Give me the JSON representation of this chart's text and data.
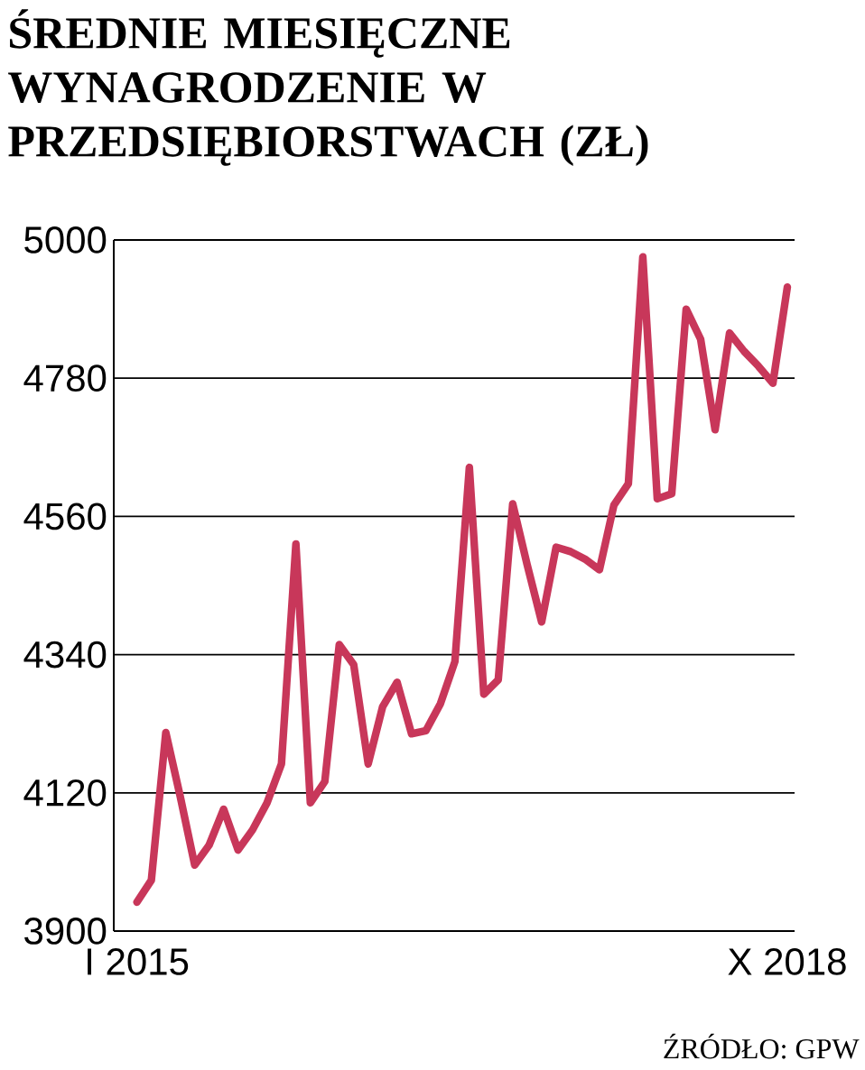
{
  "chart_data": {
    "type": "line",
    "title": "ŚREDNIE MIESIĘCZNE WYNAGRODZENIE W PRZEDSIĘBIORSTWACH (ZŁ)",
    "categories": [
      "I 2015",
      null,
      null,
      null,
      null,
      null,
      null,
      null,
      null,
      null,
      null,
      null,
      null,
      null,
      null,
      null,
      null,
      null,
      null,
      null,
      null,
      null,
      null,
      null,
      null,
      null,
      null,
      null,
      null,
      null,
      null,
      null,
      null,
      null,
      null,
      null,
      null,
      null,
      null,
      null,
      null,
      null,
      null,
      null,
      null,
      "X 2018"
    ],
    "series": [
      {
        "color": "#c8375a",
        "values": [
          3946,
          3981,
          4216,
          4114,
          4005,
          4037,
          4094,
          4029,
          4061,
          4104,
          4166,
          4516,
          4104,
          4138,
          4356,
          4324,
          4166,
          4257,
          4296,
          4214,
          4219,
          4262,
          4329,
          4638,
          4277,
          4300,
          4580,
          4483,
          4392,
          4511,
          4504,
          4492,
          4475,
          4578,
          4612,
          4973,
          4588,
          4596,
          4890,
          4842,
          4698,
          4852,
          4823,
          4799,
          4772,
          4925
        ]
      }
    ],
    "ylim": [
      3900,
      5000
    ],
    "yticks": [
      3900,
      4120,
      4340,
      4560,
      4780,
      5000
    ],
    "grid": "y",
    "marker": "none",
    "line_style": "solid",
    "annotations": [
      "ŹRÓDŁO: GPW"
    ]
  }
}
